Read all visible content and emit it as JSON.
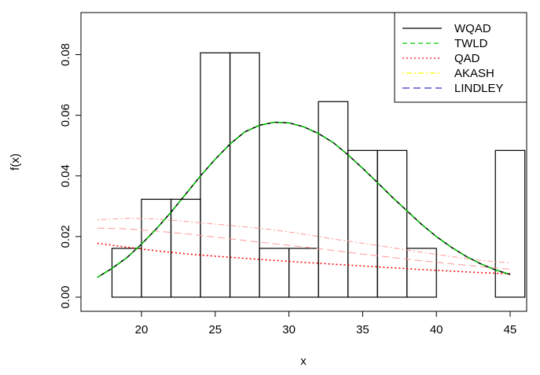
{
  "chart_data": {
    "type": "histogram-with-density-curves",
    "xlabel": "x",
    "ylabel": "f(x)",
    "xlim": [
      16.5,
      46.5
    ],
    "ylim": [
      0,
      0.095
    ],
    "x_ticks": [
      20,
      25,
      30,
      35,
      40,
      45
    ],
    "y_ticks": [
      0.0,
      0.02,
      0.04,
      0.06,
      0.08
    ],
    "y_tick_labels": [
      "0.00",
      "0.02",
      "0.04",
      "0.06",
      "0.08"
    ],
    "histogram": {
      "bins": [
        {
          "from": 18,
          "to": 20,
          "density": 0.0161
        },
        {
          "from": 20,
          "to": 22,
          "density": 0.0323
        },
        {
          "from": 22,
          "to": 24,
          "density": 0.0323
        },
        {
          "from": 24,
          "to": 26,
          "density": 0.0806
        },
        {
          "from": 26,
          "to": 28,
          "density": 0.0806
        },
        {
          "from": 28,
          "to": 30,
          "density": 0.0161
        },
        {
          "from": 30,
          "to": 32,
          "density": 0.0161
        },
        {
          "from": 32,
          "to": 34,
          "density": 0.0645
        },
        {
          "from": 34,
          "to": 36,
          "density": 0.0484
        },
        {
          "from": 36,
          "to": 38,
          "density": 0.0484
        },
        {
          "from": 38,
          "to": 40,
          "density": 0.0161
        },
        {
          "from": 40,
          "to": 42,
          "density": 0
        },
        {
          "from": 42,
          "to": 44,
          "density": 0
        },
        {
          "from": 44,
          "to": 46,
          "density": 0.0484
        }
      ]
    },
    "series": [
      {
        "name": "WQAD",
        "color": "#000000",
        "dash": "solid",
        "x": [
          17,
          18,
          19,
          20,
          21,
          22,
          23,
          24,
          25,
          26,
          27,
          28,
          29,
          30,
          31,
          32,
          33,
          34,
          35,
          36,
          37,
          38,
          39,
          40,
          41,
          42,
          43,
          44,
          45
        ],
        "y": [
          0.0065,
          0.0095,
          0.013,
          0.0175,
          0.0225,
          0.028,
          0.034,
          0.04,
          0.0455,
          0.0505,
          0.0545,
          0.0567,
          0.0577,
          0.0575,
          0.0562,
          0.054,
          0.051,
          0.047,
          0.0425,
          0.0378,
          0.033,
          0.0285,
          0.024,
          0.02,
          0.0165,
          0.0135,
          0.011,
          0.009,
          0.0075
        ]
      },
      {
        "name": "TWLD",
        "color": "#00cc00",
        "dash": "dashed",
        "x": [
          17,
          18,
          19,
          20,
          21,
          22,
          23,
          24,
          25,
          26,
          27,
          28,
          29,
          30,
          31,
          32,
          33,
          34,
          35,
          36,
          37,
          38,
          39,
          40,
          41,
          42,
          43,
          44,
          45
        ],
        "y": [
          0.0065,
          0.0095,
          0.013,
          0.0175,
          0.0225,
          0.028,
          0.034,
          0.04,
          0.0455,
          0.0505,
          0.0545,
          0.0567,
          0.0577,
          0.0575,
          0.0562,
          0.054,
          0.051,
          0.047,
          0.0425,
          0.0378,
          0.033,
          0.0285,
          0.024,
          0.02,
          0.0165,
          0.0135,
          0.011,
          0.009,
          0.0075
        ]
      },
      {
        "name": "QAD",
        "color": "#ff0000",
        "dash": "dotted",
        "x": [
          17,
          19,
          21,
          23,
          25,
          27,
          29,
          31,
          33,
          35,
          37,
          39,
          41,
          43,
          45
        ],
        "y": [
          0.0178,
          0.0165,
          0.0153,
          0.0143,
          0.0135,
          0.0128,
          0.0121,
          0.0115,
          0.0109,
          0.0103,
          0.0097,
          0.0091,
          0.0086,
          0.0081,
          0.0077
        ]
      },
      {
        "name": "AKASH",
        "color": "#ffff00",
        "dash": "dot-dash",
        "x": [
          17,
          19,
          21,
          23,
          25,
          27,
          29,
          31,
          33,
          35,
          37,
          39,
          41,
          43,
          45
        ],
        "y": [
          0.0255,
          0.026,
          0.0258,
          0.025,
          0.0241,
          0.0232,
          0.0222,
          0.0208,
          0.0192,
          0.0178,
          0.0163,
          0.0148,
          0.0134,
          0.0121,
          0.0113
        ]
      },
      {
        "name": "LINDLEY",
        "color": "#3333cc",
        "dash": "long-dash",
        "x": [
          17,
          19,
          21,
          23,
          25,
          27,
          29,
          31,
          33,
          35,
          37,
          39,
          41,
          43,
          45
        ],
        "y": [
          0.0228,
          0.0225,
          0.0218,
          0.0209,
          0.0198,
          0.0187,
          0.0176,
          0.0166,
          0.0154,
          0.0142,
          0.0131,
          0.012,
          0.011,
          0.0101,
          0.0092
        ]
      }
    ],
    "extra_faint_curves_color": "#ff9999",
    "legend_position": "top-right"
  }
}
